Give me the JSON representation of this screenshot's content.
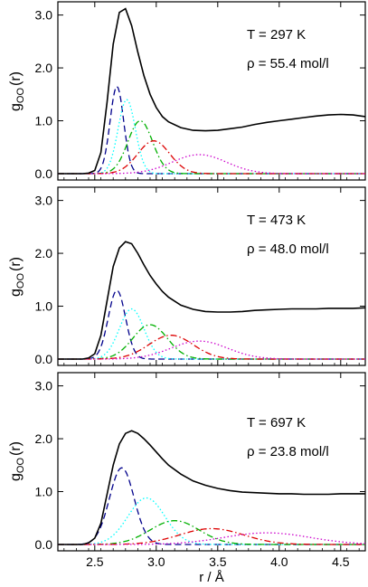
{
  "chart_data": [
    {
      "type": "line",
      "ylabel": {
        "main": "g",
        "sub": "OO",
        "tail": "(r)"
      },
      "xlim": [
        2.2,
        4.7
      ],
      "ylim": [
        -0.12,
        3.25
      ],
      "yticks": [
        0.0,
        1.0,
        2.0,
        3.0
      ],
      "ytick_labels": [
        "0.0",
        "1.0",
        "2.0",
        "3.0"
      ],
      "xticks": [
        2.5,
        3.0,
        3.5,
        4.0,
        4.5
      ],
      "annotations": [
        "T = 297 K",
        "ρ = 55.4 mol/l"
      ],
      "series": [
        {
          "color": "#000000",
          "dash": "solid",
          "x": [
            2.4,
            2.45,
            2.5,
            2.55,
            2.6,
            2.65,
            2.7,
            2.75,
            2.8,
            2.85,
            2.9,
            2.95,
            3.0,
            3.05,
            3.1,
            3.2,
            3.3,
            3.4,
            3.5,
            3.6,
            3.7,
            3.8,
            3.9,
            4.0,
            4.1,
            4.2,
            4.3,
            4.4,
            4.5,
            4.6,
            4.7
          ],
          "y": [
            0.0,
            0.01,
            0.06,
            0.4,
            1.35,
            2.45,
            3.05,
            3.12,
            2.8,
            2.3,
            1.85,
            1.5,
            1.25,
            1.08,
            0.98,
            0.87,
            0.82,
            0.81,
            0.82,
            0.85,
            0.88,
            0.93,
            0.97,
            1.0,
            1.03,
            1.06,
            1.09,
            1.11,
            1.12,
            1.11,
            1.08
          ]
        },
        {
          "color": "#00008b",
          "dash": "dash",
          "peak": [
            2.68,
            1.65,
            0.055
          ]
        },
        {
          "color": "#00ffff",
          "dash": "dot",
          "peak": [
            2.76,
            1.4,
            0.07
          ]
        },
        {
          "color": "#00b000",
          "dash": "dashdot",
          "peak": [
            2.87,
            1.0,
            0.1
          ]
        },
        {
          "color": "#dd0000",
          "dash": "dashdot",
          "peak": [
            2.98,
            0.62,
            0.13
          ]
        },
        {
          "color": "#cc00cc",
          "dash": "dot",
          "peak": [
            3.35,
            0.36,
            0.22
          ]
        }
      ]
    },
    {
      "type": "line",
      "ylabel": {
        "main": "g",
        "sub": "OO",
        "tail": "(r)"
      },
      "xlim": [
        2.2,
        4.7
      ],
      "ylim": [
        -0.12,
        3.25
      ],
      "yticks": [
        0.0,
        1.0,
        2.0,
        3.0
      ],
      "ytick_labels": [
        "0.0",
        "1.0",
        "2.0",
        "3.0"
      ],
      "xticks": [
        2.5,
        3.0,
        3.5,
        4.0,
        4.5
      ],
      "annotations": [
        "T = 473 K",
        "ρ = 48.0 mol/l"
      ],
      "series": [
        {
          "color": "#000000",
          "dash": "solid",
          "x": [
            2.4,
            2.45,
            2.5,
            2.55,
            2.6,
            2.65,
            2.7,
            2.75,
            2.8,
            2.85,
            2.9,
            2.95,
            3.0,
            3.05,
            3.1,
            3.2,
            3.3,
            3.4,
            3.5,
            3.6,
            3.7,
            3.8,
            3.9,
            4.0,
            4.1,
            4.2,
            4.3,
            4.4,
            4.5,
            4.6,
            4.7
          ],
          "y": [
            0.0,
            0.02,
            0.1,
            0.45,
            1.1,
            1.75,
            2.1,
            2.22,
            2.18,
            2.0,
            1.78,
            1.58,
            1.42,
            1.28,
            1.17,
            1.02,
            0.94,
            0.9,
            0.89,
            0.89,
            0.9,
            0.92,
            0.93,
            0.94,
            0.95,
            0.95,
            0.95,
            0.96,
            0.96,
            0.96,
            0.97
          ]
        },
        {
          "color": "#00008b",
          "dash": "dash",
          "peak": [
            2.68,
            1.3,
            0.07
          ]
        },
        {
          "color": "#00ffff",
          "dash": "dot",
          "peak": [
            2.8,
            0.95,
            0.1
          ]
        },
        {
          "color": "#00b000",
          "dash": "dashdot",
          "peak": [
            2.95,
            0.65,
            0.14
          ]
        },
        {
          "color": "#dd0000",
          "dash": "dashdot",
          "peak": [
            3.12,
            0.45,
            0.18
          ]
        },
        {
          "color": "#cc00cc",
          "dash": "dot",
          "peak": [
            3.35,
            0.34,
            0.23
          ]
        }
      ]
    },
    {
      "type": "line",
      "ylabel": {
        "main": "g",
        "sub": "OO",
        "tail": "(r)"
      },
      "xlabel": "r / Å",
      "xlim": [
        2.2,
        4.7
      ],
      "ylim": [
        -0.12,
        3.25
      ],
      "yticks": [
        0.0,
        1.0,
        2.0,
        3.0
      ],
      "ytick_labels": [
        "0.0",
        "1.0",
        "2.0",
        "3.0"
      ],
      "xticks": [
        2.5,
        3.0,
        3.5,
        4.0,
        4.5
      ],
      "xtick_labels": [
        "2.5",
        "3.0",
        "3.5",
        "4.0",
        "4.5"
      ],
      "annotations": [
        "T = 697 K",
        "ρ = 23.8 mol/l"
      ],
      "series": [
        {
          "color": "#000000",
          "dash": "solid",
          "x": [
            2.4,
            2.45,
            2.5,
            2.55,
            2.6,
            2.65,
            2.7,
            2.75,
            2.8,
            2.85,
            2.9,
            2.95,
            3.0,
            3.05,
            3.1,
            3.2,
            3.3,
            3.4,
            3.5,
            3.6,
            3.7,
            3.8,
            3.9,
            4.0,
            4.1,
            4.2,
            4.3,
            4.4,
            4.5,
            4.6,
            4.7
          ],
          "y": [
            0.0,
            0.03,
            0.12,
            0.4,
            0.95,
            1.5,
            1.9,
            2.1,
            2.15,
            2.1,
            2.0,
            1.88,
            1.75,
            1.62,
            1.5,
            1.33,
            1.2,
            1.12,
            1.06,
            1.02,
            0.99,
            0.98,
            0.97,
            0.96,
            0.96,
            0.95,
            0.95,
            0.95,
            0.96,
            0.96,
            0.96
          ]
        },
        {
          "color": "#00008b",
          "dash": "dash",
          "peak": [
            2.72,
            1.45,
            0.1
          ]
        },
        {
          "color": "#00ffff",
          "dash": "dot",
          "peak": [
            2.92,
            0.88,
            0.15
          ]
        },
        {
          "color": "#00b000",
          "dash": "dashdot",
          "peak": [
            3.15,
            0.45,
            0.2
          ]
        },
        {
          "color": "#dd0000",
          "dash": "dashdot",
          "peak": [
            3.45,
            0.3,
            0.26
          ]
        },
        {
          "color": "#cc00cc",
          "dash": "dot",
          "peak": [
            3.9,
            0.22,
            0.35
          ]
        }
      ]
    }
  ]
}
